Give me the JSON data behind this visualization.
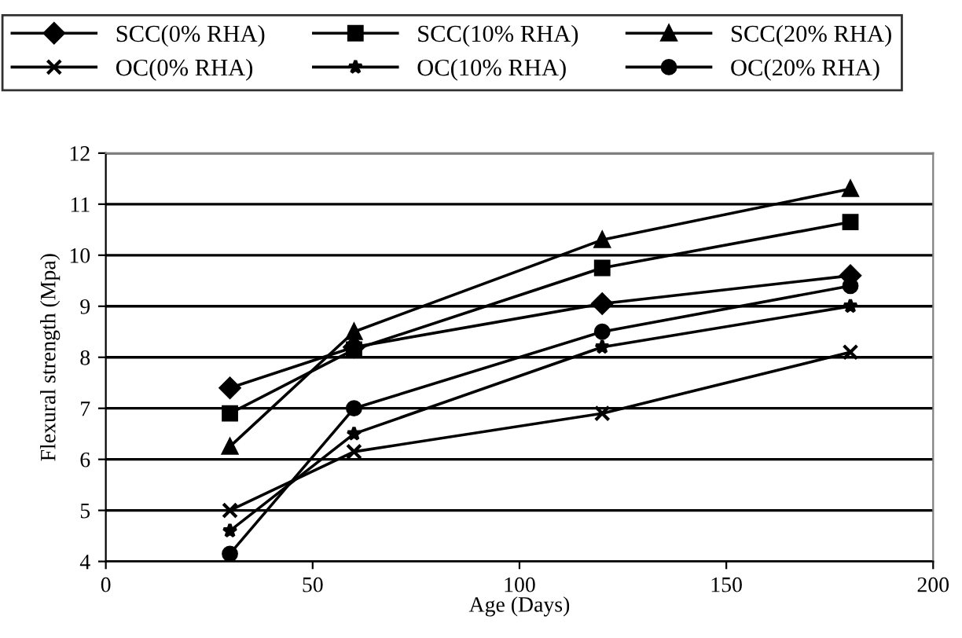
{
  "chart_data": {
    "type": "line",
    "xlabel": "Age (Days)",
    "ylabel": "Flexural strength (Mpa)",
    "x": [
      30,
      60,
      120,
      180
    ],
    "series": [
      {
        "name": "SCC(0% RHA)",
        "color": "#000000",
        "marker": "diamond",
        "values": [
          7.4,
          8.2,
          9.05,
          9.6
        ]
      },
      {
        "name": "SCC(10% RHA)",
        "color": "#000000",
        "marker": "square",
        "values": [
          6.9,
          8.15,
          9.75,
          10.65
        ]
      },
      {
        "name": "SCC(20% RHA)",
        "color": "#000000",
        "marker": "triangle",
        "values": [
          6.25,
          8.5,
          10.3,
          11.3
        ]
      },
      {
        "name": "OC(0% RHA)",
        "color": "#000000",
        "marker": "cross",
        "values": [
          5.0,
          6.15,
          6.9,
          8.1
        ]
      },
      {
        "name": "OC(10% RHA)",
        "color": "#000000",
        "marker": "star",
        "values": [
          4.6,
          6.5,
          8.2,
          9.0
        ]
      },
      {
        "name": "OC(20% RHA)",
        "color": "#000000",
        "marker": "circle",
        "values": [
          4.15,
          7.0,
          8.5,
          9.4
        ]
      }
    ],
    "xlim": [
      0,
      200
    ],
    "xticks": [
      0,
      50,
      100,
      150,
      200
    ],
    "ylim": [
      4,
      12
    ],
    "yticks": [
      4,
      5,
      6,
      7,
      8,
      9,
      10,
      11,
      12
    ],
    "grid": "y",
    "legend": "top",
    "line_style": "solid"
  }
}
